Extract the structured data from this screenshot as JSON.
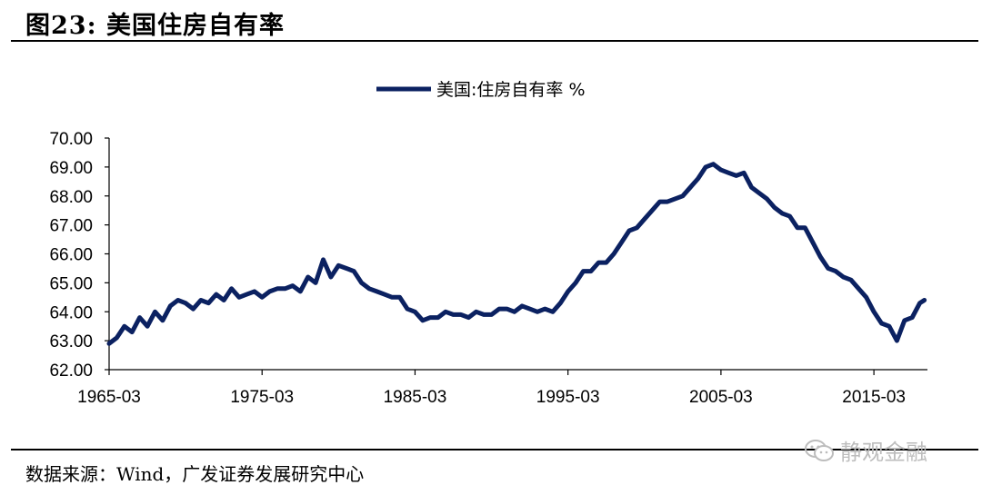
{
  "figure": {
    "title": "图23:  美国住房自有率",
    "source": "数据来源：Wind，广发证券发展研究中心",
    "watermark": "静观金融"
  },
  "colors": {
    "series": "#0b2161",
    "axis": "#000000",
    "watermark": "#bdbdbd"
  },
  "chart_data": {
    "type": "line",
    "title": "",
    "xlabel": "",
    "ylabel": "",
    "ylim": [
      62.0,
      70.0
    ],
    "yticks": [
      "62.00",
      "63.00",
      "64.00",
      "65.00",
      "66.00",
      "67.00",
      "68.00",
      "69.00",
      "70.00"
    ],
    "xticks": [
      "1965-03",
      "1975-03",
      "1985-03",
      "1995-03",
      "2005-03",
      "2015-03"
    ],
    "xrange": [
      1965.0,
      2018.5
    ],
    "grid": false,
    "legend_position": "top-center",
    "series": [
      {
        "name": "美国:住房自有率 %",
        "x": [
          1965.0,
          1965.5,
          1966.0,
          1966.5,
          1967.0,
          1967.5,
          1968.0,
          1968.5,
          1969.0,
          1969.5,
          1970.0,
          1970.5,
          1971.0,
          1971.5,
          1972.0,
          1972.5,
          1973.0,
          1973.5,
          1974.0,
          1974.5,
          1975.0,
          1975.5,
          1976.0,
          1976.5,
          1977.0,
          1977.5,
          1978.0,
          1978.5,
          1979.0,
          1979.5,
          1980.0,
          1980.5,
          1981.0,
          1981.5,
          1982.0,
          1982.5,
          1983.0,
          1983.5,
          1984.0,
          1984.5,
          1985.0,
          1985.5,
          1986.0,
          1986.5,
          1987.0,
          1987.5,
          1988.0,
          1988.5,
          1989.0,
          1989.5,
          1990.0,
          1990.5,
          1991.0,
          1991.5,
          1992.0,
          1992.5,
          1993.0,
          1993.5,
          1994.0,
          1994.5,
          1995.0,
          1995.5,
          1996.0,
          1996.5,
          1997.0,
          1997.5,
          1998.0,
          1998.5,
          1999.0,
          1999.5,
          2000.0,
          2000.5,
          2001.0,
          2001.5,
          2002.0,
          2002.5,
          2003.0,
          2003.5,
          2004.0,
          2004.5,
          2005.0,
          2005.5,
          2006.0,
          2006.5,
          2007.0,
          2007.5,
          2008.0,
          2008.5,
          2009.0,
          2009.5,
          2010.0,
          2010.5,
          2011.0,
          2011.5,
          2012.0,
          2012.5,
          2013.0,
          2013.5,
          2014.0,
          2014.5,
          2015.0,
          2015.5,
          2016.0,
          2016.5,
          2017.0,
          2017.5,
          2018.0,
          2018.3
        ],
        "values": [
          62.9,
          63.1,
          63.5,
          63.3,
          63.8,
          63.5,
          64.0,
          63.7,
          64.2,
          64.4,
          64.3,
          64.1,
          64.4,
          64.3,
          64.6,
          64.4,
          64.8,
          64.5,
          64.6,
          64.7,
          64.5,
          64.7,
          64.8,
          64.8,
          64.9,
          64.7,
          65.2,
          65.0,
          65.8,
          65.2,
          65.6,
          65.5,
          65.4,
          65.0,
          64.8,
          64.7,
          64.6,
          64.5,
          64.5,
          64.1,
          64.0,
          63.7,
          63.8,
          63.8,
          64.0,
          63.9,
          63.9,
          63.8,
          64.0,
          63.9,
          63.9,
          64.1,
          64.1,
          64.0,
          64.2,
          64.1,
          64.0,
          64.1,
          64.0,
          64.3,
          64.7,
          65.0,
          65.4,
          65.4,
          65.7,
          65.7,
          66.0,
          66.4,
          66.8,
          66.9,
          67.2,
          67.5,
          67.8,
          67.8,
          67.9,
          68.0,
          68.3,
          68.6,
          69.0,
          69.1,
          68.9,
          68.8,
          68.7,
          68.8,
          68.3,
          68.1,
          67.9,
          67.6,
          67.4,
          67.3,
          66.9,
          66.9,
          66.4,
          65.9,
          65.5,
          65.4,
          65.2,
          65.1,
          64.8,
          64.5,
          64.0,
          63.6,
          63.5,
          63.0,
          63.7,
          63.8,
          64.3,
          64.4
        ]
      }
    ]
  }
}
